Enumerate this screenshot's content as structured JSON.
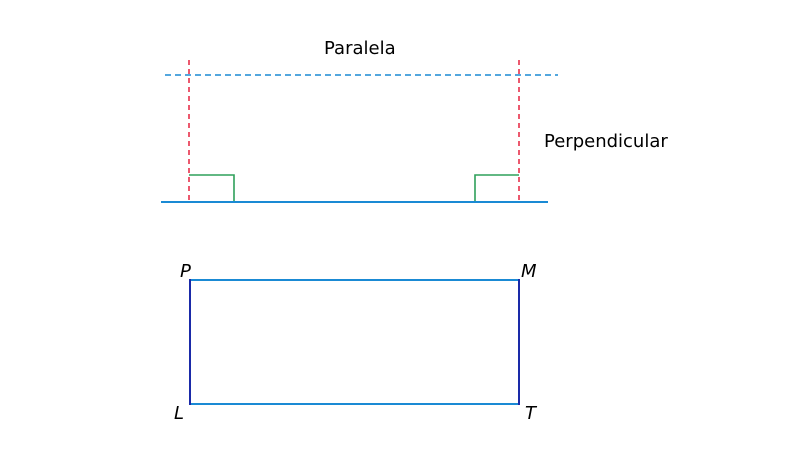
{
  "labels": {
    "parallel": "Paralela",
    "perpendicular": "Perpendicular"
  },
  "rectangle": {
    "vertices": {
      "top_left": "P",
      "top_right": "M",
      "bottom_left": "L",
      "bottom_right": "T"
    }
  },
  "colors": {
    "base_line": "#1a8ad4",
    "parallel_line": "#1a8ad4",
    "perpendicular_lines": "#e8304a",
    "right_angle_marks": "#2ea05a",
    "rect_horizontal": "#1a8ad4",
    "rect_vertical": "#1a2aa8"
  }
}
